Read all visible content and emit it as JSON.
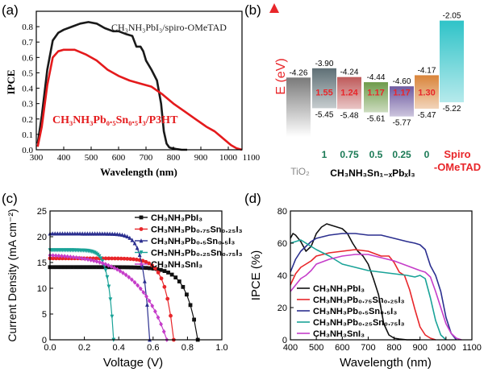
{
  "chart_data": [
    {
      "panel": "(a)",
      "type": "line",
      "xlabel": "Wavelength (nm)",
      "ylabel": "IPCE",
      "xlim": [
        300,
        1050
      ],
      "ylim": [
        0,
        0.9
      ],
      "xticks": [
        300,
        400,
        500,
        600,
        700,
        800,
        900,
        1000,
        1100
      ],
      "yticks": [
        0.0,
        0.1,
        0.2,
        0.3,
        0.4,
        0.5,
        0.6,
        0.7,
        0.8
      ],
      "series": [
        {
          "name": "CH₃NH₃PbI₃/spiro-OMeTAD",
          "color": "#1a1a1a",
          "x": [
            305,
            320,
            340,
            360,
            380,
            400,
            430,
            460,
            490,
            520,
            550,
            580,
            600,
            630,
            650,
            665,
            680,
            690,
            700,
            720,
            740,
            755,
            765,
            775,
            785,
            795,
            810,
            830,
            850
          ],
          "y": [
            0.04,
            0.22,
            0.52,
            0.71,
            0.76,
            0.78,
            0.8,
            0.82,
            0.83,
            0.82,
            0.79,
            0.77,
            0.77,
            0.75,
            0.74,
            0.67,
            0.67,
            0.64,
            0.58,
            0.52,
            0.45,
            0.3,
            0.12,
            0.04,
            0.015,
            0.01,
            0.005,
            0.0,
            0.0
          ]
        },
        {
          "name": "CH₃NH₃Pb₀.₅Sn₀.₅I₃/P3HT",
          "color": "#e41a1c",
          "x": [
            305,
            320,
            340,
            360,
            380,
            400,
            440,
            480,
            520,
            560,
            600,
            640,
            680,
            720,
            760,
            800,
            840,
            880,
            920,
            950,
            970,
            990,
            1010,
            1030,
            1050
          ],
          "y": [
            0.02,
            0.15,
            0.42,
            0.6,
            0.64,
            0.65,
            0.65,
            0.62,
            0.58,
            0.52,
            0.48,
            0.45,
            0.43,
            0.41,
            0.36,
            0.3,
            0.25,
            0.2,
            0.15,
            0.12,
            0.09,
            0.06,
            0.03,
            0.01,
            0.0
          ]
        }
      ]
    },
    {
      "panel": "(b)",
      "type": "bar",
      "ylabel": "E (eV)",
      "categories": [
        "TiO₂",
        "1",
        "0.75",
        "0.5",
        "0.25",
        "0",
        "Spiro -OMeTAD"
      ],
      "top_labels": [
        "-4.26",
        "-3.90",
        "-4.24",
        "-4.44",
        "-4.60",
        "-4.17",
        "-2.05"
      ],
      "bottom_labels": [
        "",
        "-5.45",
        "-5.48",
        "-5.61",
        "-5.77",
        "-5.47",
        "-5.22"
      ],
      "bandgaps": [
        "",
        "1.55",
        "1.24",
        "1.17",
        "1.17",
        "1.30",
        ""
      ],
      "tops": [
        -4.26,
        -3.9,
        -4.24,
        -4.44,
        -4.6,
        -4.17,
        -2.05
      ],
      "bottoms": [
        -6.8,
        -5.45,
        -5.48,
        -5.61,
        -5.77,
        -5.47,
        -5.22
      ],
      "colors": [
        "#7a7a7a",
        "#5e6f75",
        "#bf5b5b",
        "#6e9b4a",
        "#6e5aa0",
        "#d9843a",
        "#2fc3c8"
      ],
      "x_axis_label": "CH₃NH₃Sn₁₋ₓPbₓI₃",
      "tio2_label": "TiO₂",
      "spiro_label_lines": [
        "Spiro",
        "-OMeTAD"
      ]
    },
    {
      "panel": "(c)",
      "type": "line",
      "xlabel": "Voltage (V)",
      "ylabel": "Current Density (mA cm⁻²)",
      "xlim": [
        0,
        1.0
      ],
      "ylim": [
        0,
        25
      ],
      "xticks": [
        0.0,
        0.2,
        0.4,
        0.6,
        0.8,
        1.0
      ],
      "yticks": [
        0,
        5,
        10,
        15,
        20,
        25
      ],
      "series": [
        {
          "name": "CH₃NH₃PbI₃",
          "color": "#111111",
          "marker": "square",
          "jsc": 14.1,
          "voc": 0.86,
          "k": 13
        },
        {
          "name": "CH₃NH₃Pb₀.₇₅Sn₀.₂₅I₃",
          "color": "#e8262a",
          "marker": "circle",
          "jsc": 15.8,
          "voc": 0.72,
          "k": 14
        },
        {
          "name": "CH₃NH₃Pb₀.₅Sn₀.₅I₃",
          "color": "#2b2f8f",
          "marker": "triangle",
          "jsc": 20.6,
          "voc": 0.58,
          "k": 16
        },
        {
          "name": "CH₃NH₃Pb₀.₂₅Sn₀.₇₅I₃",
          "color": "#1aa398",
          "marker": "down",
          "jsc": 17.4,
          "voc": 0.37,
          "k": 12
        },
        {
          "name": "CH₃NH₃SnI₃",
          "color": "#c53dc9",
          "marker": "diamond",
          "jsc": 16.4,
          "voc": 0.68,
          "k": 4
        }
      ]
    },
    {
      "panel": "(d)",
      "type": "line",
      "xlabel": "Wavelength (nm)",
      "ylabel": "IPCE (%)",
      "xlim": [
        400,
        1100
      ],
      "ylim": [
        0,
        80
      ],
      "xticks": [
        400,
        500,
        600,
        700,
        800,
        900,
        1000,
        1100
      ],
      "yticks": [
        0,
        20,
        40,
        60,
        80
      ],
      "series": [
        {
          "name": "CH₃NH₃PbI₃",
          "color": "#111111",
          "x": [
            400,
            410,
            420,
            430,
            440,
            460,
            480,
            500,
            520,
            540,
            560,
            580,
            600,
            620,
            640,
            660,
            680,
            700,
            720,
            740,
            760,
            780,
            800,
            820,
            850,
            900
          ],
          "y": [
            63,
            66,
            65,
            63,
            61,
            55,
            58,
            66,
            70,
            72,
            71,
            70,
            69,
            66,
            60,
            55,
            52,
            47,
            38,
            28,
            10,
            3,
            1,
            0.5,
            0,
            0
          ]
        },
        {
          "name": "CH₃NH₃Pb₀.₇₅Sn₀.₂₅I₃",
          "color": "#e8262a",
          "x": [
            400,
            420,
            440,
            460,
            480,
            500,
            550,
            600,
            650,
            700,
            750,
            780,
            800,
            820,
            840,
            860,
            880,
            900,
            920,
            940,
            960
          ],
          "y": [
            34,
            41,
            45,
            47,
            49,
            52,
            54,
            55,
            56,
            55,
            52,
            52,
            48,
            42,
            40,
            31,
            19,
            8,
            3,
            1,
            0
          ]
        },
        {
          "name": "CH₃NH₃Pb₀.₅Sn₀.₅I₃",
          "color": "#2b2f8f",
          "x": [
            400,
            420,
            440,
            460,
            480,
            500,
            550,
            600,
            650,
            700,
            750,
            800,
            850,
            880,
            900,
            920,
            940,
            960,
            980,
            1000,
            1020,
            1040
          ],
          "y": [
            42,
            50,
            55,
            58,
            61,
            63,
            65,
            66,
            66,
            65,
            65,
            63,
            61,
            60,
            59,
            56,
            46,
            40,
            30,
            14,
            4,
            0
          ]
        },
        {
          "name": "CH₃NH₃Pb₀.₂₅Sn₀.₇₅I₃",
          "color": "#1aa398",
          "x": [
            400,
            420,
            440,
            460,
            480,
            500,
            550,
            600,
            650,
            700,
            750,
            800,
            850,
            880,
            900,
            920,
            940,
            960,
            980,
            1000
          ],
          "y": [
            60,
            61,
            62,
            60,
            58,
            56,
            52,
            47,
            45,
            43,
            42,
            41,
            40,
            39,
            40,
            38,
            26,
            12,
            3,
            0
          ]
        },
        {
          "name": "CH₃NH₃SnI₃",
          "color": "#c53dc9",
          "x": [
            400,
            420,
            440,
            460,
            480,
            500,
            550,
            600,
            650,
            700,
            750,
            800,
            850,
            900,
            920,
            940,
            960,
            980,
            1000,
            1020,
            1040,
            1060
          ],
          "y": [
            30,
            34,
            38,
            40,
            43,
            47,
            50,
            52,
            53,
            53,
            51,
            49,
            46,
            43,
            42,
            39,
            30,
            20,
            10,
            4,
            1,
            0
          ]
        }
      ]
    }
  ],
  "panel_labels": [
    "(a)",
    "(b)",
    "(c)",
    "(d)"
  ]
}
